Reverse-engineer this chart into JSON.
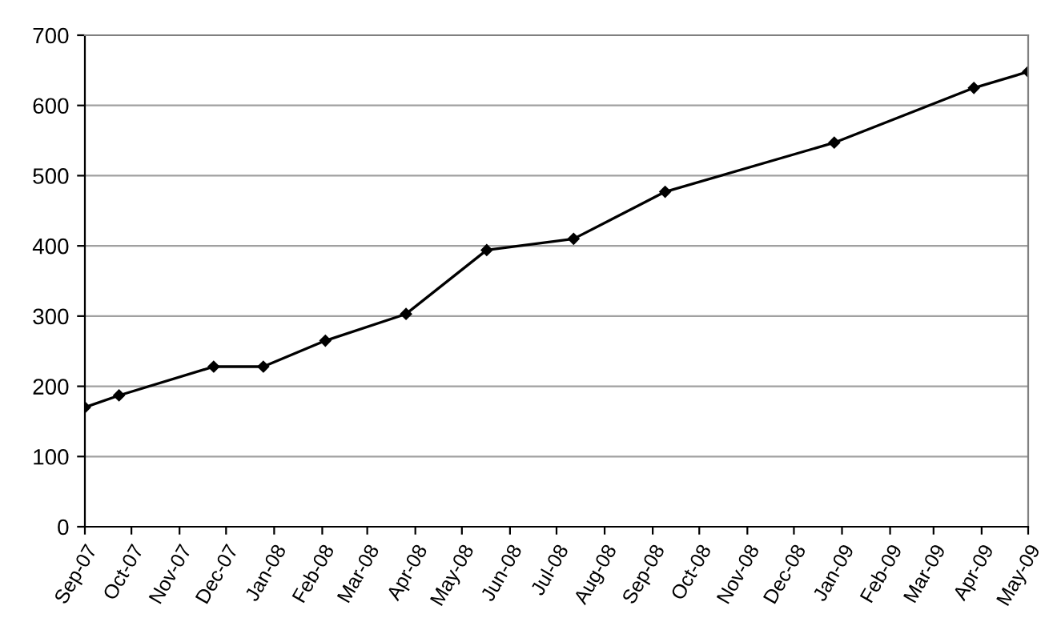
{
  "chart_data": {
    "type": "line",
    "x": [
      "2007-09-01",
      "2007-09-23",
      "2007-11-23",
      "2007-12-25",
      "2008-02-03",
      "2008-03-26",
      "2008-05-17",
      "2008-07-12",
      "2008-09-09",
      "2008-12-27",
      "2009-03-27",
      "2009-05-01"
    ],
    "series": [
      {
        "color": "#000000",
        "values": [
          170,
          187,
          228,
          228,
          265,
          303,
          394,
          410,
          477,
          547,
          625,
          648
        ]
      }
    ],
    "xlim": [
      "2007-09-01",
      "2009-05-01"
    ],
    "xticks": [
      {
        "value": "2007-09-01",
        "label": "Sep-07"
      },
      {
        "value": "2007-10-01",
        "label": "Oct-07"
      },
      {
        "value": "2007-11-01",
        "label": "Nov-07"
      },
      {
        "value": "2007-12-01",
        "label": "Dec-07"
      },
      {
        "value": "2008-01-01",
        "label": "Jan-08"
      },
      {
        "value": "2008-02-01",
        "label": "Feb-08"
      },
      {
        "value": "2008-03-01",
        "label": "Mar-08"
      },
      {
        "value": "2008-04-01",
        "label": "Apr-08"
      },
      {
        "value": "2008-05-01",
        "label": "May-08"
      },
      {
        "value": "2008-06-01",
        "label": "Jun-08"
      },
      {
        "value": "2008-07-01",
        "label": "Jul-08"
      },
      {
        "value": "2008-08-01",
        "label": "Aug-08"
      },
      {
        "value": "2008-09-01",
        "label": "Sep-08"
      },
      {
        "value": "2008-10-01",
        "label": "Oct-08"
      },
      {
        "value": "2008-11-01",
        "label": "Nov-08"
      },
      {
        "value": "2008-12-01",
        "label": "Dec-08"
      },
      {
        "value": "2009-01-01",
        "label": "Jan-09"
      },
      {
        "value": "2009-02-01",
        "label": "Feb-09"
      },
      {
        "value": "2009-03-01",
        "label": "Mar-09"
      },
      {
        "value": "2009-04-01",
        "label": "Apr-09"
      },
      {
        "value": "2009-05-01",
        "label": "May-09"
      }
    ],
    "ylim": [
      0,
      700
    ],
    "yticks": [
      0,
      100,
      200,
      300,
      400,
      500,
      600,
      700
    ],
    "grid": "y",
    "marker": "diamond",
    "line_style": "solid",
    "legend": false
  }
}
